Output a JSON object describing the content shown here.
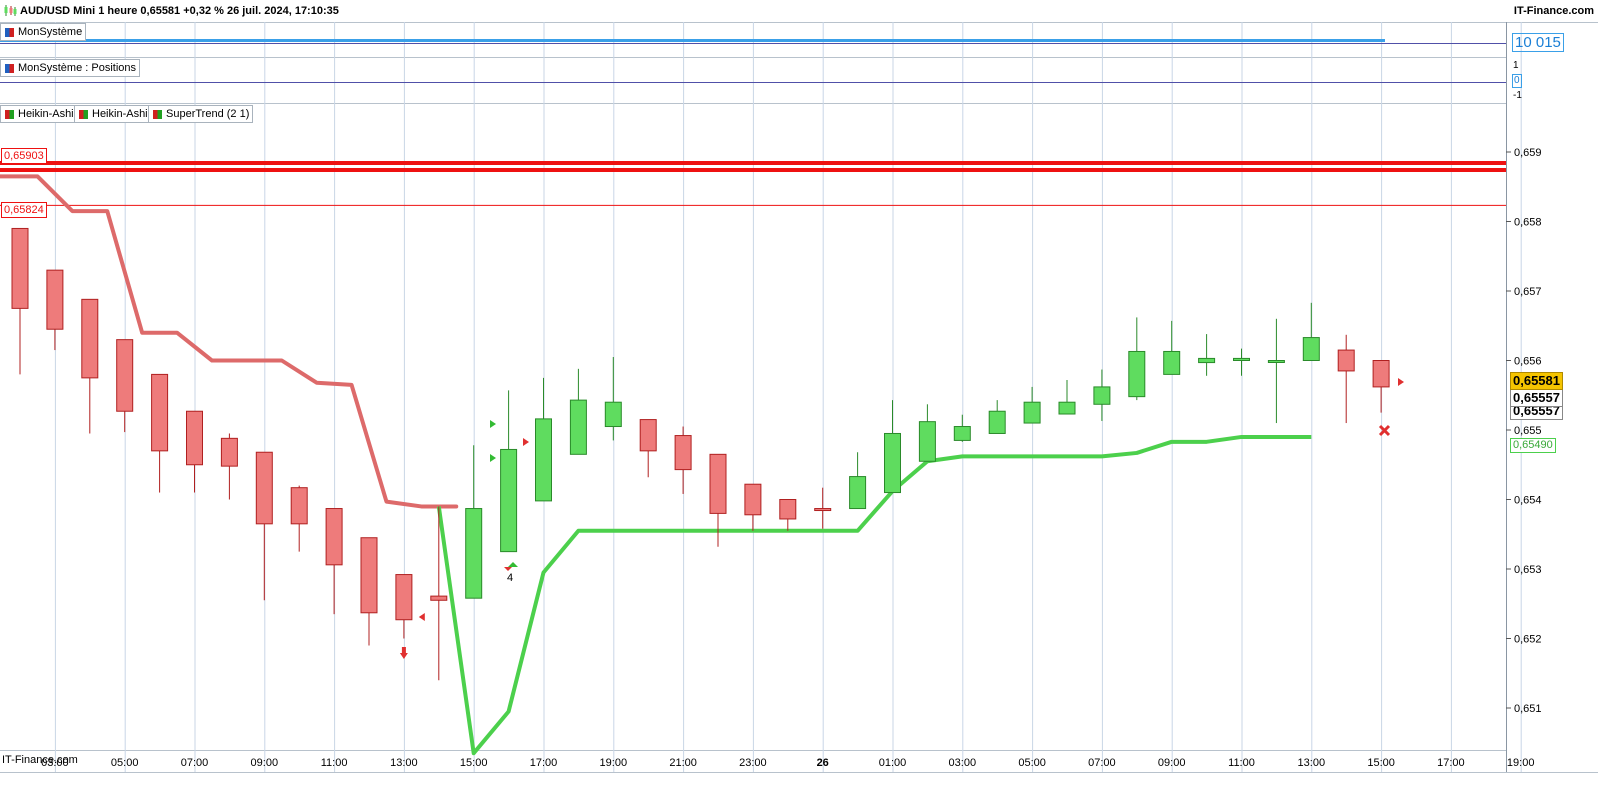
{
  "header": {
    "title": "AUD/USD Mini 1 heure 0,65581 +0,32 % 26 juil. 2024, 17:10:35",
    "site": "IT-Finance.com"
  },
  "panels": {
    "system": {
      "legend": "MonSystème",
      "value": "10 015"
    },
    "positions": {
      "legend": "MonSystème : Positions",
      "tick_top": "1",
      "tick_zero": "0",
      "tick_bottom": "-1"
    },
    "price": {
      "legends": [
        "Heikin-Ashi",
        "Heikin-Ashi",
        "SuperTrend (2 1)"
      ]
    }
  },
  "levels": [
    {
      "label": "0,65903",
      "value": 0.65903
    },
    {
      "label": "0,65824",
      "value": 0.65824
    }
  ],
  "price_tags": {
    "last": "0,65581",
    "second": "0,65557",
    "third": "0,65557",
    "supertrend": "0,65490"
  },
  "marker_label": "4",
  "footer_brand": "IT-Finance.com",
  "colors": {
    "bull": "#5fdc5f",
    "bear": "#ee7b7b",
    "st_bull": "#4cd04c",
    "st_bear": "#dd6a6a",
    "level": "#ee1111",
    "grid": "#c9d6e6"
  },
  "chart_data": {
    "type": "candlestick",
    "y_ticks": [
      "0,651",
      "0,652",
      "0,653",
      "0,654",
      "0,655",
      "0,656",
      "0,657",
      "0,658",
      "0,659"
    ],
    "x_ticks": [
      "03:00",
      "05:00",
      "07:00",
      "09:00",
      "11:00",
      "13:00",
      "15:00",
      "17:00",
      "19:00",
      "21:00",
      "23:00",
      "26",
      "01:00",
      "03:00",
      "05:00",
      "07:00",
      "09:00",
      "11:00",
      "13:00",
      "15:00",
      "17:00",
      "19:00"
    ],
    "ylim": [
      0.6504,
      0.6599
    ],
    "candles": [
      {
        "o": 0.6579,
        "c": 0.65675,
        "h": 0.6579,
        "l": 0.6558
      },
      {
        "o": 0.6573,
        "c": 0.65645,
        "h": 0.6573,
        "l": 0.65615
      },
      {
        "o": 0.65688,
        "c": 0.65575,
        "h": 0.65688,
        "l": 0.65495
      },
      {
        "o": 0.6563,
        "c": 0.65527,
        "h": 0.6563,
        "l": 0.65497
      },
      {
        "o": 0.6558,
        "c": 0.6547,
        "h": 0.6558,
        "l": 0.6541
      },
      {
        "o": 0.65527,
        "c": 0.6545,
        "h": 0.65527,
        "l": 0.6541
      },
      {
        "o": 0.65488,
        "c": 0.65448,
        "h": 0.65495,
        "l": 0.654
      },
      {
        "o": 0.65468,
        "c": 0.65365,
        "h": 0.65468,
        "l": 0.65255
      },
      {
        "o": 0.65417,
        "c": 0.65365,
        "h": 0.6542,
        "l": 0.65325
      },
      {
        "o": 0.65387,
        "c": 0.65306,
        "h": 0.65387,
        "l": 0.65235
      },
      {
        "o": 0.65345,
        "c": 0.65237,
        "h": 0.65345,
        "l": 0.6519
      },
      {
        "o": 0.65292,
        "c": 0.65227,
        "h": 0.65292,
        "l": 0.652
      },
      {
        "o": 0.65261,
        "c": 0.65255,
        "h": 0.6539,
        "l": 0.6514
      },
      {
        "o": 0.65258,
        "c": 0.65387,
        "h": 0.65478,
        "l": 0.65258
      },
      {
        "o": 0.65325,
        "c": 0.65472,
        "h": 0.65557,
        "l": 0.65325
      },
      {
        "o": 0.65398,
        "c": 0.65516,
        "h": 0.65575,
        "l": 0.65398
      },
      {
        "o": 0.65465,
        "c": 0.65543,
        "h": 0.65588,
        "l": 0.65465
      },
      {
        "o": 0.65505,
        "c": 0.6554,
        "h": 0.65605,
        "l": 0.65485
      },
      {
        "o": 0.65515,
        "c": 0.6547,
        "h": 0.65515,
        "l": 0.65432
      },
      {
        "o": 0.65492,
        "c": 0.65443,
        "h": 0.65505,
        "l": 0.65408
      },
      {
        "o": 0.65465,
        "c": 0.6538,
        "h": 0.65465,
        "l": 0.65332
      },
      {
        "o": 0.65422,
        "c": 0.65378,
        "h": 0.65422,
        "l": 0.65355
      },
      {
        "o": 0.654,
        "c": 0.65372,
        "h": 0.654,
        "l": 0.65355
      },
      {
        "o": 0.65387,
        "c": 0.65385,
        "h": 0.65417,
        "l": 0.65358
      },
      {
        "o": 0.65387,
        "c": 0.65433,
        "h": 0.65468,
        "l": 0.65387
      },
      {
        "o": 0.6541,
        "c": 0.65495,
        "h": 0.65543,
        "l": 0.6541
      },
      {
        "o": 0.65455,
        "c": 0.65512,
        "h": 0.65537,
        "l": 0.65455
      },
      {
        "o": 0.65485,
        "c": 0.65505,
        "h": 0.65522,
        "l": 0.65483
      },
      {
        "o": 0.65495,
        "c": 0.65527,
        "h": 0.65543,
        "l": 0.65495
      },
      {
        "o": 0.6551,
        "c": 0.6554,
        "h": 0.65562,
        "l": 0.6551
      },
      {
        "o": 0.65523,
        "c": 0.6554,
        "h": 0.65572,
        "l": 0.65523
      },
      {
        "o": 0.65537,
        "c": 0.65562,
        "h": 0.65587,
        "l": 0.65513
      },
      {
        "o": 0.65548,
        "c": 0.65613,
        "h": 0.65662,
        "l": 0.65543
      },
      {
        "o": 0.6558,
        "c": 0.65613,
        "h": 0.65657,
        "l": 0.6558
      },
      {
        "o": 0.65597,
        "c": 0.65603,
        "h": 0.65638,
        "l": 0.65578
      },
      {
        "o": 0.656,
        "c": 0.65603,
        "h": 0.65617,
        "l": 0.65578
      },
      {
        "o": 0.656,
        "c": 0.656,
        "h": 0.6566,
        "l": 0.6551
      },
      {
        "o": 0.656,
        "c": 0.65633,
        "h": 0.65683,
        "l": 0.656
      },
      {
        "o": 0.65615,
        "c": 0.65585,
        "h": 0.65637,
        "l": 0.6551
      },
      {
        "o": 0.656,
        "c": 0.65562,
        "h": 0.656,
        "l": 0.65525
      }
    ],
    "supertrend_bear": [
      0.65865,
      0.65815,
      0.65815,
      0.6564,
      0.6564,
      0.656,
      0.656,
      0.656,
      0.65568,
      0.65565,
      0.65397,
      0.6539,
      0.6539
    ],
    "supertrend_bull": [
      0.6539,
      0.65035,
      0.65095,
      0.65295,
      0.65355,
      0.65355,
      0.65355,
      0.65355,
      0.65355,
      0.65355,
      0.65355,
      0.65355,
      0.65355,
      0.65412,
      0.65455,
      0.65462,
      0.65462,
      0.65462,
      0.65462,
      0.65462,
      0.65467,
      0.65483,
      0.65483,
      0.6549,
      0.6549,
      0.6549
    ],
    "system_equity": "10 015",
    "levels": [
      0.65903,
      0.65824
    ]
  }
}
